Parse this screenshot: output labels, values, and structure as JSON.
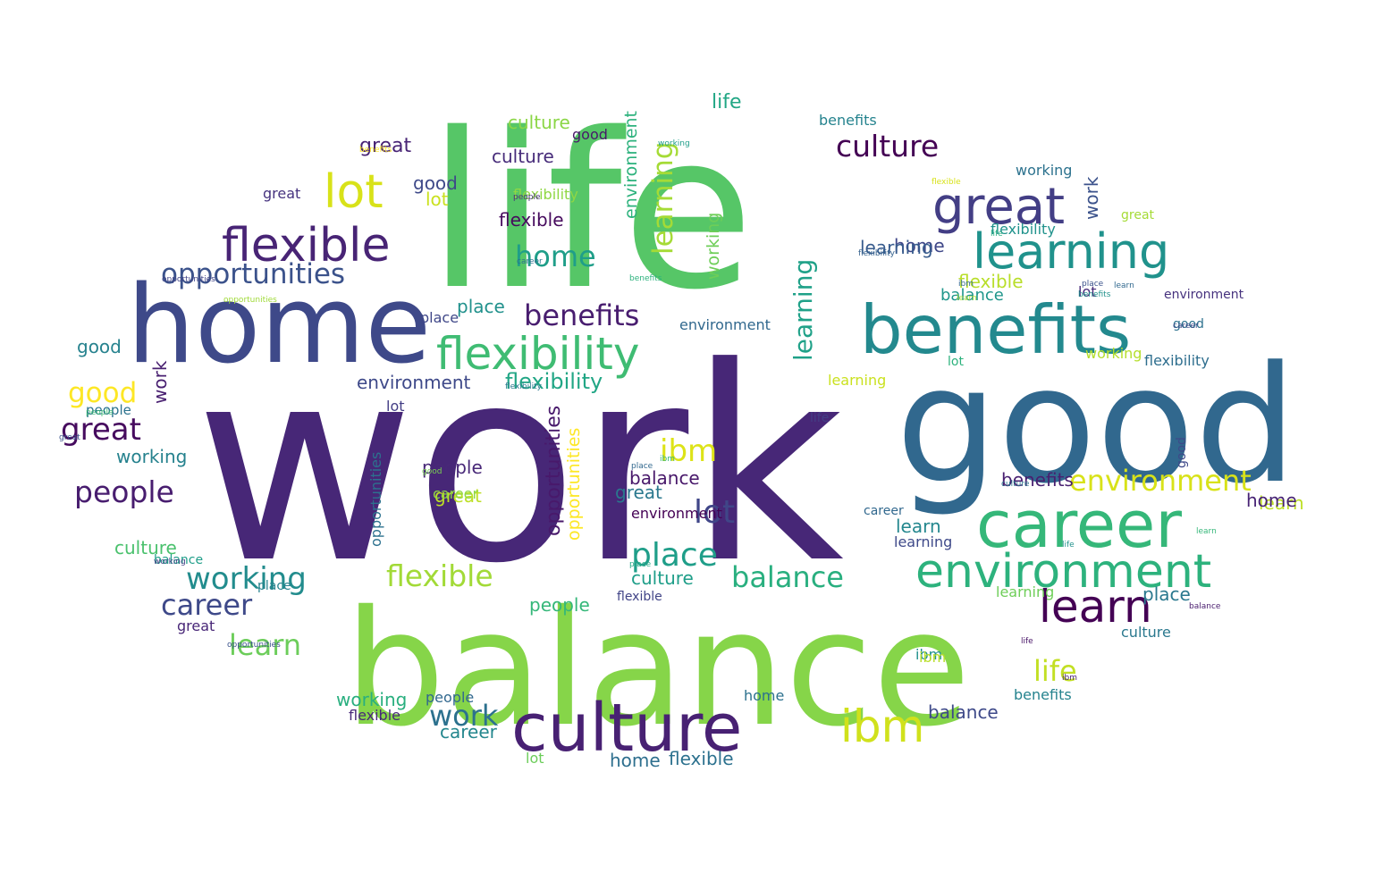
{
  "title": "",
  "words": [
    {
      "text": "work",
      "color": "#472777"
    },
    {
      "text": "life",
      "color": "#56c667"
    },
    {
      "text": "balance",
      "color": "#86d549"
    },
    {
      "text": "good",
      "color": "#31688e"
    },
    {
      "text": "home",
      "color": "#3e4989"
    },
    {
      "text": "benefits",
      "color": "#23898e"
    },
    {
      "text": "career",
      "color": "#35b779"
    },
    {
      "text": "culture",
      "color": "#482173"
    },
    {
      "text": "flexibility",
      "color": "#3fbc73"
    },
    {
      "text": "environment",
      "color": "#2db27d"
    },
    {
      "text": "learning",
      "color": "#20928c"
    },
    {
      "text": "great",
      "color": "#433e85"
    },
    {
      "text": "flexible",
      "color": "#482475"
    },
    {
      "text": "learn",
      "color": "#440154"
    },
    {
      "text": "opportunities",
      "color": "#3b528b"
    },
    {
      "text": "ibm",
      "color": "#d0e11c"
    },
    {
      "text": "lot",
      "color": "#d8e219"
    },
    {
      "text": "people",
      "color": "#481d6f"
    },
    {
      "text": "working",
      "color": "#228c8d"
    },
    {
      "text": "place",
      "color": "#1f9e89"
    },
    {
      "text": "culture",
      "color": "#440154"
    },
    {
      "text": "great",
      "color": "#460b5e"
    },
    {
      "text": "career",
      "color": "#3e4989"
    },
    {
      "text": "flexible",
      "color": "#a2da37"
    },
    {
      "text": "working",
      "color": "#26828e"
    },
    {
      "text": "good",
      "color": "#fde725"
    },
    {
      "text": "ibm",
      "color": "#dde318"
    },
    {
      "text": "balance",
      "color": "#29af7f"
    },
    {
      "text": "environment",
      "color": "#d8e219"
    },
    {
      "text": "life",
      "color": "#c2df23"
    },
    {
      "text": "learning",
      "color": "#1fa188"
    },
    {
      "text": "flexibility",
      "color": "#21a685"
    },
    {
      "text": "culture",
      "color": "#472c7a"
    },
    {
      "text": "benefits",
      "color": "#481d6f"
    },
    {
      "text": "home",
      "color": "#1f9e89"
    },
    {
      "text": "lot",
      "color": "#404688"
    },
    {
      "text": "place",
      "color": "#21918c"
    },
    {
      "text": "learn",
      "color": "#6ccd5a"
    },
    {
      "text": "ibm",
      "color": "#35b779"
    },
    {
      "text": "lot",
      "color": "#cae11f"
    },
    {
      "text": "flexible",
      "color": "#460a5d"
    },
    {
      "text": "opportunities",
      "color": "#414487"
    },
    {
      "text": "people",
      "color": "#482878"
    },
    {
      "text": "great",
      "color": "#3b528b"
    },
    {
      "text": "work",
      "color": "#2c718e"
    },
    {
      "text": "balance",
      "color": "#48186a"
    },
    {
      "text": "learning",
      "color": "#a5db36"
    },
    {
      "text": "flexibility",
      "color": "#2a788e"
    },
    {
      "text": "environment",
      "color": "#3e4989"
    },
    {
      "text": "opportunities",
      "color": "#48196b"
    },
    {
      "text": "opportunities",
      "color": "#fde725"
    },
    {
      "text": "working",
      "color": "#6ece58"
    },
    {
      "text": "great",
      "color": "#482475"
    },
    {
      "text": "good",
      "color": "#26828e"
    },
    {
      "text": "place",
      "color": "#22a785"
    },
    {
      "text": "work",
      "color": "#481f70"
    },
    {
      "text": "people",
      "color": "#2c728e"
    },
    {
      "text": "great",
      "color": "#bddf26"
    },
    {
      "text": "lot",
      "color": "#472c7a"
    },
    {
      "text": "home",
      "color": "#3f4788"
    },
    {
      "text": "career",
      "color": "#2c718e"
    },
    {
      "text": "learn",
      "color": "#24878e"
    },
    {
      "text": "flexible",
      "color": "#b8de29"
    },
    {
      "text": "environment",
      "color": "#2db27d"
    },
    {
      "text": "benefits",
      "color": "#25838e"
    },
    {
      "text": "balance",
      "color": "#1f968b"
    },
    {
      "text": "learning",
      "color": "#375b8d"
    },
    {
      "text": "ibm",
      "color": "#31688e"
    },
    {
      "text": "life",
      "color": "#433e85"
    },
    {
      "text": "place",
      "color": "#3b528b"
    },
    {
      "text": "culture",
      "color": "#8bd646"
    },
    {
      "text": "working",
      "color": "#29af7f"
    },
    {
      "text": "flexibility",
      "color": "#8fd744"
    },
    {
      "text": "home",
      "color": "#2c718e"
    },
    {
      "text": "people",
      "color": "#35b779"
    },
    {
      "text": "great",
      "color": "#2a788e"
    },
    {
      "text": "benefits",
      "color": "#fde725"
    },
    {
      "text": "culture",
      "color": "#4ac16d"
    },
    {
      "text": "learn",
      "color": "#a8db34"
    },
    {
      "text": "career",
      "color": "#24878e"
    },
    {
      "text": "environment",
      "color": "#440154"
    },
    {
      "text": "flexible",
      "color": "#2c718e"
    },
    {
      "text": "balance",
      "color": "#3e4989"
    },
    {
      "text": "lot",
      "color": "#6ccd5a"
    },
    {
      "text": "working",
      "color": "#1f9e89"
    },
    {
      "text": "people",
      "color": "#472f7d"
    },
    {
      "text": "good",
      "color": "#7ad151"
    },
    {
      "text": "life",
      "color": "#22a785"
    },
    {
      "text": "place",
      "color": "#2a788e"
    },
    {
      "text": "benefits",
      "color": "#481f70"
    },
    {
      "text": "career",
      "color": "#31688e"
    },
    {
      "text": "learning",
      "color": "#3e4989"
    },
    {
      "text": "culture",
      "color": "#1f9e89"
    },
    {
      "text": "ibm",
      "color": "#21918c"
    },
    {
      "text": "flexibility",
      "color": "#20928c"
    },
    {
      "text": "work",
      "color": "#3b528b"
    },
    {
      "text": "great",
      "color": "#46337f"
    },
    {
      "text": "good",
      "color": "#3e4989"
    },
    {
      "text": "learn",
      "color": "#bddf26"
    },
    {
      "text": "home",
      "color": "#2e6f8e"
    },
    {
      "text": "environment",
      "color": "#31688e"
    },
    {
      "text": "flexible",
      "color": "#482878"
    },
    {
      "text": "people",
      "color": "#31688e"
    },
    {
      "text": "benefits",
      "color": "#25838e"
    },
    {
      "text": "balance",
      "color": "#1f9e89"
    },
    {
      "text": "culture",
      "color": "#2a788e"
    },
    {
      "text": "opportunities",
      "color": "#2c718e"
    },
    {
      "text": "lot",
      "color": "#433e85"
    },
    {
      "text": "working",
      "color": "#2c728e"
    },
    {
      "text": "place",
      "color": "#26828e"
    },
    {
      "text": "good",
      "color": "#48186a"
    },
    {
      "text": "career",
      "color": "#8fd744"
    },
    {
      "text": "learning",
      "color": "#6ece58"
    },
    {
      "text": "life",
      "color": "#29af7f"
    },
    {
      "text": "flexible",
      "color": "#d8e219"
    },
    {
      "text": "working",
      "color": "#b5de2b"
    },
    {
      "text": "flexibility",
      "color": "#34618d"
    },
    {
      "text": "ibm",
      "color": "#b8de29"
    },
    {
      "text": "great",
      "color": "#a5db36"
    },
    {
      "text": "home",
      "color": "#482475"
    },
    {
      "text": "people",
      "color": "#3dbc74"
    },
    {
      "text": "opportunities",
      "color": "#a0da39"
    },
    {
      "text": "flexible",
      "color": "#414487"
    },
    {
      "text": "place",
      "color": "#31688e"
    },
    {
      "text": "culture",
      "color": "#2a788e"
    },
    {
      "text": "benefits",
      "color": "#2db27d"
    },
    {
      "text": "learning",
      "color": "#cae11f"
    },
    {
      "text": "life",
      "color": "#21918c"
    },
    {
      "text": "good",
      "color": "#2c718e"
    },
    {
      "text": "lot",
      "color": "#2db27d"
    },
    {
      "text": "environment",
      "color": "#46327e"
    },
    {
      "text": "learn",
      "color": "#35b779"
    },
    {
      "text": "place",
      "color": "#3f4788"
    },
    {
      "text": "working",
      "color": "#433e85"
    },
    {
      "text": "great",
      "color": "#482677"
    },
    {
      "text": "learn",
      "color": "#31688e"
    },
    {
      "text": "opportunities",
      "color": "#3b528b"
    },
    {
      "text": "good",
      "color": "#3e4989"
    },
    {
      "text": "flexibility",
      "color": "#2e6e8e"
    },
    {
      "text": "benefits",
      "color": "#21918c"
    },
    {
      "text": "balance",
      "color": "#481b6d"
    },
    {
      "text": "life",
      "color": "#481467"
    },
    {
      "text": "ibm",
      "color": "#482173"
    },
    {
      "text": "career",
      "color": "#3e4989"
    }
  ]
}
